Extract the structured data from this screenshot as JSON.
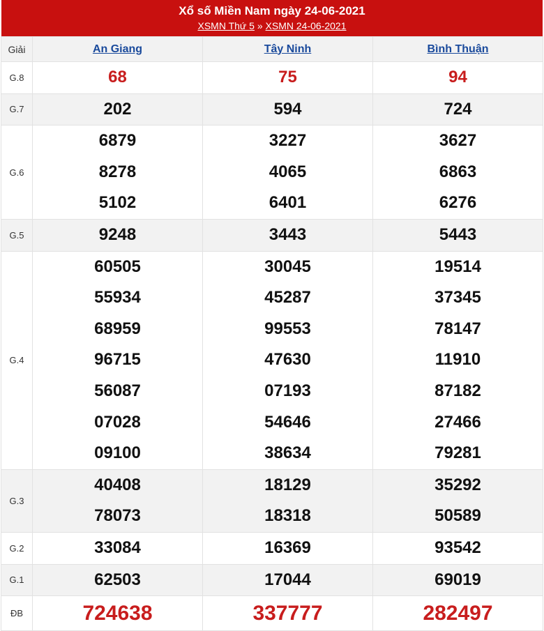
{
  "header": {
    "title": "Xổ số Miền Nam ngày 24-06-2021",
    "link1": "XSMN Thứ 5",
    "sep": "»",
    "link2": "XSMN 24-06-2021"
  },
  "columns": {
    "label": "Giải",
    "provinces": [
      "An Giang",
      "Tây Ninh",
      "Bình Thuận"
    ]
  },
  "rows": [
    {
      "label": "G.8",
      "values": [
        [
          "68"
        ],
        [
          "75"
        ],
        [
          "94"
        ]
      ]
    },
    {
      "label": "G.7",
      "values": [
        [
          "202"
        ],
        [
          "594"
        ],
        [
          "724"
        ]
      ]
    },
    {
      "label": "G.6",
      "values": [
        [
          "6879",
          "8278",
          "5102"
        ],
        [
          "3227",
          "4065",
          "6401"
        ],
        [
          "3627",
          "6863",
          "6276"
        ]
      ]
    },
    {
      "label": "G.5",
      "values": [
        [
          "9248"
        ],
        [
          "3443"
        ],
        [
          "5443"
        ]
      ]
    },
    {
      "label": "G.4",
      "values": [
        [
          "60505",
          "55934",
          "68959",
          "96715",
          "56087",
          "07028",
          "09100"
        ],
        [
          "30045",
          "45287",
          "99553",
          "47630",
          "07193",
          "54646",
          "38634"
        ],
        [
          "19514",
          "37345",
          "78147",
          "11910",
          "87182",
          "27466",
          "79281"
        ]
      ]
    },
    {
      "label": "G.3",
      "values": [
        [
          "40408",
          "78073"
        ],
        [
          "18129",
          "18318"
        ],
        [
          "35292",
          "50589"
        ]
      ]
    },
    {
      "label": "G.2",
      "values": [
        [
          "33084"
        ],
        [
          "16369"
        ],
        [
          "93542"
        ]
      ]
    },
    {
      "label": "G.1",
      "values": [
        [
          "62503"
        ],
        [
          "17044"
        ],
        [
          "69019"
        ]
      ]
    },
    {
      "label": "ĐB",
      "values": [
        [
          "724638"
        ],
        [
          "337777"
        ],
        [
          "282497"
        ]
      ]
    }
  ],
  "colors": {
    "header_bg": "#c8100f",
    "highlight": "#c81d1d",
    "link": "#1a4a9c"
  }
}
